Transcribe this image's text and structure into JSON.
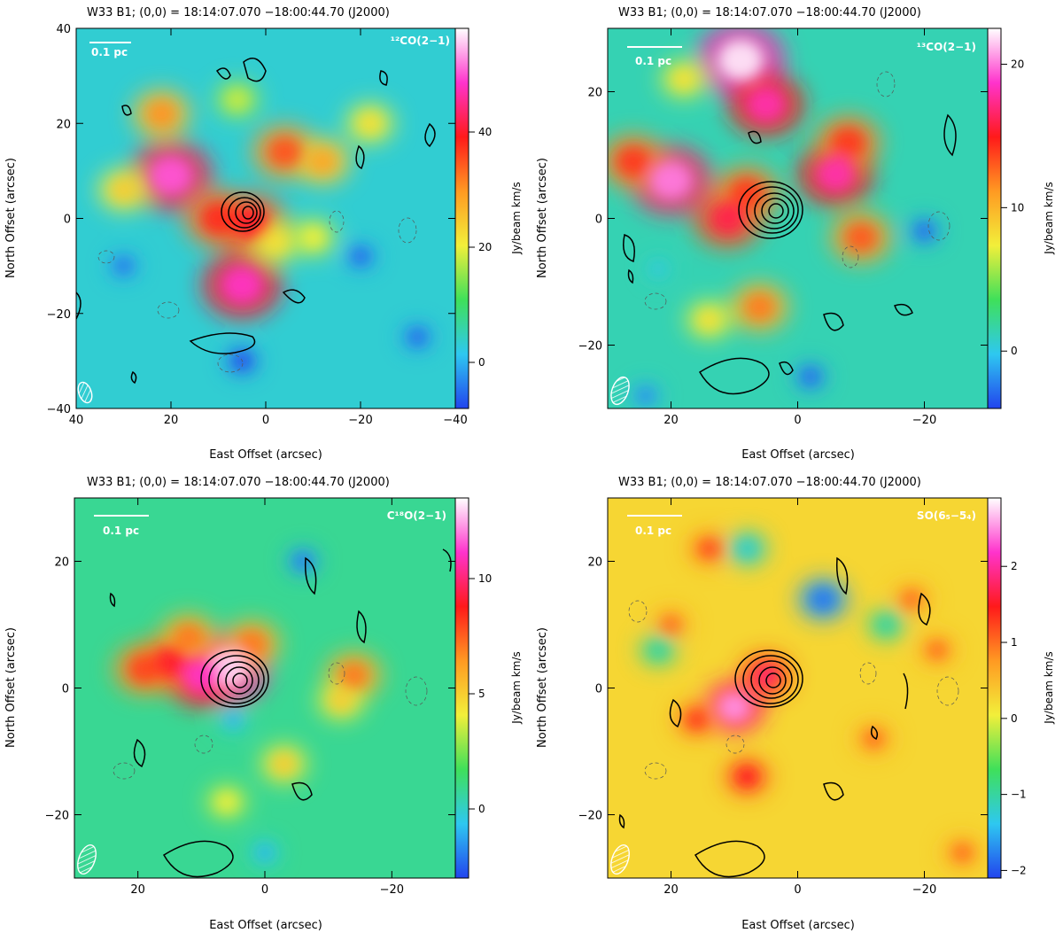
{
  "colors": {
    "blue": "#2244ee",
    "cyan": "#2ec8f0",
    "green": "#3fe05a",
    "yellow": "#f2ef3a",
    "orange": "#ff9a22",
    "red": "#ff1a1a",
    "magenta": "#ff33cc",
    "white": "#ffffff",
    "contour": "#000000"
  },
  "icons": {
    "beam": "hatched-ellipse-icon"
  },
  "chart_data": [
    {
      "type": "heatmap",
      "title": "W33 B1; (0,0) = 18:14:07.070      −18:00:44.70 (J2000)",
      "molecule_label": "¹²CO(2−1)",
      "scale_bar_label": "0.1 pc",
      "xlabel": "East Offset (arcsec)",
      "ylabel": "North Offset (arcsec)",
      "xlim": [
        40,
        -40
      ],
      "ylim": [
        -40,
        40
      ],
      "xticks": [
        40,
        20,
        0,
        -20,
        -40
      ],
      "yticks": [
        -40,
        -20,
        0,
        20,
        40
      ],
      "colorbar": {
        "label": "Jy/beam km/s",
        "range": [
          -8,
          58
        ],
        "ticks": [
          0,
          20,
          40
        ]
      },
      "grid": false,
      "peaks": [
        {
          "x": 20,
          "y": 9,
          "value": 50
        },
        {
          "x": 5,
          "y": -14,
          "value": 48
        },
        {
          "x": 10,
          "y": 0,
          "value": 38
        },
        {
          "x": 3,
          "y": -1,
          "value": 40
        },
        {
          "x": 22,
          "y": 22,
          "value": 30
        },
        {
          "x": -4,
          "y": 14,
          "value": 35
        },
        {
          "x": -12,
          "y": 12,
          "value": 28
        },
        {
          "x": -2,
          "y": -5,
          "value": 22
        },
        {
          "x": -10,
          "y": -4,
          "value": 20
        },
        {
          "x": 30,
          "y": 6,
          "value": 24
        },
        {
          "x": -22,
          "y": 20,
          "value": 22
        },
        {
          "x": 6,
          "y": 25,
          "value": 18
        },
        {
          "x": 5,
          "y": -30,
          "value": -8
        },
        {
          "x": -20,
          "y": -8,
          "value": -6
        },
        {
          "x": 30,
          "y": -10,
          "value": -5
        },
        {
          "x": -32,
          "y": -25,
          "value": -6
        }
      ]
    },
    {
      "type": "heatmap",
      "title": "W33 B1; (0,0) = 18:14:07.070      −18:00:44.70 (J2000)",
      "molecule_label": "¹³CO(2−1)",
      "scale_bar_label": "0.1 pc",
      "xlabel": "East Offset (arcsec)",
      "ylabel": "North Offset (arcsec)",
      "xlim": [
        30,
        -30
      ],
      "ylim": [
        -30,
        30
      ],
      "xticks": [
        20,
        0,
        -20
      ],
      "yticks": [
        -20,
        0,
        20
      ],
      "colorbar": {
        "label": "Jy/beam km/s",
        "range": [
          -4,
          22.5
        ],
        "ticks": [
          0,
          10,
          20
        ]
      },
      "grid": false,
      "peaks": [
        {
          "x": 9,
          "y": 25,
          "value": 22
        },
        {
          "x": 5,
          "y": 18,
          "value": 18
        },
        {
          "x": 20,
          "y": 6,
          "value": 20
        },
        {
          "x": 26,
          "y": 9,
          "value": 14
        },
        {
          "x": 11,
          "y": 0,
          "value": 16
        },
        {
          "x": 8,
          "y": 4,
          "value": 14
        },
        {
          "x": -6,
          "y": 7,
          "value": 18
        },
        {
          "x": -8,
          "y": 12,
          "value": 14
        },
        {
          "x": -10,
          "y": -3,
          "value": 13
        },
        {
          "x": 6,
          "y": -14,
          "value": 12
        },
        {
          "x": 14,
          "y": -16,
          "value": 8
        },
        {
          "x": 18,
          "y": 22,
          "value": 8
        },
        {
          "x": -20,
          "y": -2,
          "value": -3
        },
        {
          "x": -2,
          "y": -25,
          "value": -3
        },
        {
          "x": 24,
          "y": -28,
          "value": -2
        },
        {
          "x": 22,
          "y": -8,
          "value": 0
        }
      ]
    },
    {
      "type": "heatmap",
      "title": "W33 B1; (0,0) = 18:14:07.070      −18:00:44.70 (J2000)",
      "molecule_label": "C¹⁸O(2−1)",
      "scale_bar_label": "0.1 pc",
      "xlabel": "East Offset (arcsec)",
      "ylabel": "North Offset (arcsec)",
      "xlim": [
        30,
        -30
      ],
      "ylim": [
        -30,
        30
      ],
      "xticks": [
        20,
        0,
        -20
      ],
      "yticks": [
        -20,
        0,
        20
      ],
      "colorbar": {
        "label": "Jy/beam km/s",
        "range": [
          -3,
          13.5
        ],
        "ticks": [
          0,
          5,
          10
        ]
      },
      "grid": false,
      "peaks": [
        {
          "x": 6,
          "y": 3,
          "value": 13
        },
        {
          "x": 10,
          "y": 2,
          "value": 11
        },
        {
          "x": 15,
          "y": 4,
          "value": 9
        },
        {
          "x": 19,
          "y": 3,
          "value": 8
        },
        {
          "x": 12,
          "y": 8,
          "value": 7
        },
        {
          "x": 2,
          "y": 7,
          "value": 7
        },
        {
          "x": -14,
          "y": 2,
          "value": 7
        },
        {
          "x": -12,
          "y": -2,
          "value": 5
        },
        {
          "x": -3,
          "y": -12,
          "value": 5
        },
        {
          "x": 6,
          "y": -18,
          "value": 4
        },
        {
          "x": -6,
          "y": 20,
          "value": -2
        },
        {
          "x": 5,
          "y": -5,
          "value": -1
        },
        {
          "x": 0,
          "y": -26,
          "value": -1
        }
      ]
    },
    {
      "type": "heatmap",
      "title": "W33 B1; (0,0) = 18:14:07.070      −18:00:44.70 (J2000)",
      "molecule_label": "SO(6₅−5₄)",
      "scale_bar_label": "0.1 pc",
      "xlabel": "East Offset (arcsec)",
      "ylabel": "North Offset (arcsec)",
      "xlim": [
        30,
        -30
      ],
      "ylim": [
        -30,
        30
      ],
      "xticks": [
        20,
        0,
        -20
      ],
      "yticks": [
        -20,
        0,
        20
      ],
      "colorbar": {
        "label": "Jy/beam km/s",
        "range": [
          -2.1,
          2.9
        ],
        "ticks": [
          -2,
          -1,
          0,
          1,
          2
        ]
      },
      "grid": false,
      "peaks": [
        {
          "x": 10,
          "y": -3,
          "value": 2.5
        },
        {
          "x": 5,
          "y": 2,
          "value": 1.8
        },
        {
          "x": 8,
          "y": -14,
          "value": 1.5
        },
        {
          "x": 16,
          "y": -5,
          "value": 1.3
        },
        {
          "x": 14,
          "y": 22,
          "value": 1.2
        },
        {
          "x": -18,
          "y": 14,
          "value": 1.0
        },
        {
          "x": -22,
          "y": 6,
          "value": 1.0
        },
        {
          "x": -12,
          "y": -8,
          "value": 1.0
        },
        {
          "x": 20,
          "y": 10,
          "value": 1.0
        },
        {
          "x": -26,
          "y": -26,
          "value": 1.0
        },
        {
          "x": -4,
          "y": 14,
          "value": -1.8
        },
        {
          "x": 8,
          "y": 22,
          "value": -1.2
        },
        {
          "x": 22,
          "y": 6,
          "value": -1.0
        },
        {
          "x": -14,
          "y": 10,
          "value": -1.0
        }
      ]
    }
  ]
}
